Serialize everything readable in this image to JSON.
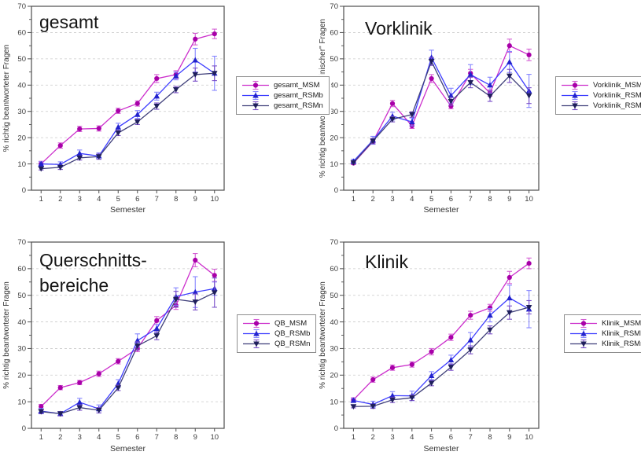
{
  "figure": {
    "background": "#ffffff",
    "axis_color": "#4d4d4d",
    "grid_color": "#c9c9c9",
    "tick_label_color": "#3d3d3d"
  },
  "chart_data": [
    {
      "type": "line",
      "id": "gesamt",
      "title": "gesamt",
      "title_lines": [
        "gesamt"
      ],
      "xlabel": "Semester",
      "ylabel": "% richtig beantworteter Fragen",
      "x": [
        1,
        2,
        3,
        4,
        5,
        6,
        7,
        8,
        9,
        10
      ],
      "ylim": [
        0,
        70
      ],
      "yticks": [
        0,
        10,
        20,
        30,
        40,
        50,
        60,
        70
      ],
      "grid_y": [
        10,
        20,
        30,
        40,
        50,
        60
      ],
      "legend_position": "right-of-plot",
      "series": [
        {
          "name": "gesamt_MSM",
          "marker": "circle",
          "color": "#cc2fcc",
          "marker_color": "#a800a8",
          "error_color": "#d45fd4",
          "values": [
            10,
            17,
            23.3,
            23.5,
            30.2,
            33,
            42.5,
            44,
            57.5,
            59.5
          ],
          "errors": [
            1,
            1,
            1,
            1,
            1,
            1,
            1.5,
            1.5,
            2.2,
            1.8
          ]
        },
        {
          "name": "gesamt_RSMb",
          "marker": "triangle-up",
          "color": "#3d3dff",
          "marker_color": "#2222cc",
          "error_color": "#8585ff",
          "values": [
            10,
            9.8,
            14,
            13,
            24,
            28.8,
            35.8,
            43.5,
            49.5,
            44.5
          ],
          "errors": [
            0.8,
            1,
            1.3,
            1.2,
            1.5,
            1.5,
            1.5,
            1.5,
            4.5,
            6.5
          ]
        },
        {
          "name": "gesamt_RSMn",
          "marker": "triangle-down",
          "color": "#3f3f7a",
          "marker_color": "#1f1f5c",
          "error_color": "#7a4fc9",
          "values": [
            8.2,
            8.7,
            12.3,
            12.8,
            21.8,
            26,
            32,
            38.3,
            44,
            44.5
          ],
          "errors": [
            0.5,
            0.8,
            0.8,
            1,
            1,
            1,
            1.2,
            1.2,
            2.5,
            2.8
          ]
        }
      ]
    },
    {
      "type": "line",
      "id": "vorklinik",
      "title": "Vorklinik",
      "title_lines": [
        "Vorklinik"
      ],
      "xlabel": "Semester",
      "ylabel": "% richtig beantworteter \"vorklinischer\" Fragen",
      "x": [
        1,
        2,
        3,
        4,
        5,
        6,
        7,
        8,
        9,
        10
      ],
      "ylim": [
        0,
        70
      ],
      "yticks": [
        0,
        10,
        20,
        30,
        40,
        50,
        60,
        70
      ],
      "grid_y": [
        10,
        20,
        30,
        40,
        50,
        60
      ],
      "legend_position": "right-of-plot",
      "series": [
        {
          "name": "Vorklinik_MSM",
          "marker": "circle",
          "color": "#cc2fcc",
          "marker_color": "#a800a8",
          "error_color": "#d45fd4",
          "values": [
            10.3,
            18.5,
            33,
            24.5,
            42.5,
            32,
            44.5,
            37,
            55,
            51.5
          ],
          "errors": [
            0.5,
            1,
            1.2,
            1,
            1.5,
            1,
            1.5,
            1.2,
            2.5,
            2.2
          ]
        },
        {
          "name": "Vorklinik_RSMb",
          "marker": "triangle-up",
          "color": "#3d3dff",
          "marker_color": "#2222cc",
          "error_color": "#8585ff",
          "values": [
            11,
            19,
            28.2,
            26,
            50.5,
            36,
            44,
            40,
            48.8,
            37.8
          ],
          "errors": [
            0.8,
            1.5,
            1.5,
            1.5,
            2.8,
            2.8,
            3.8,
            3,
            4,
            6.3
          ]
        },
        {
          "name": "Vorklinik_RSMn",
          "marker": "triangle-down",
          "color": "#3f3f7a",
          "marker_color": "#1f1f5c",
          "error_color": "#7a4fc9",
          "values": [
            10.5,
            18.7,
            27,
            28.8,
            49,
            33.8,
            41,
            35.8,
            43.5,
            36
          ],
          "errors": [
            0.5,
            1,
            1,
            1,
            1.5,
            1.5,
            2,
            2,
            2.5,
            3
          ]
        }
      ]
    },
    {
      "type": "line",
      "id": "querschnittsbereiche",
      "title": "Querschnitts-bereiche",
      "title_lines": [
        "Querschnitts-",
        "bereiche"
      ],
      "xlabel": "Semester",
      "ylabel": "% richtig beantworteter Fragen",
      "x": [
        1,
        2,
        3,
        4,
        5,
        6,
        7,
        8,
        9,
        10
      ],
      "ylim": [
        0,
        70
      ],
      "yticks": [
        0,
        10,
        20,
        30,
        40,
        50,
        60,
        70
      ],
      "grid_y": [
        10,
        20,
        30,
        40,
        50,
        60
      ],
      "legend_position": "right-of-plot",
      "series": [
        {
          "name": "QB_MSM",
          "marker": "circle",
          "color": "#cc2fcc",
          "marker_color": "#a800a8",
          "error_color": "#d45fd4",
          "values": [
            8.2,
            15.3,
            17.2,
            20.5,
            25.2,
            30,
            40.5,
            46.2,
            63.2,
            57.5
          ],
          "errors": [
            0.8,
            0.8,
            0.8,
            1,
            1,
            1.2,
            1.5,
            1.5,
            2.5,
            2.3
          ]
        },
        {
          "name": "QB_RSMb",
          "marker": "triangle-up",
          "color": "#3d3dff",
          "marker_color": "#2222cc",
          "error_color": "#8585ff",
          "values": [
            6.5,
            5.5,
            9.8,
            7.3,
            16.8,
            33,
            37.5,
            49.5,
            51.2,
            52.5
          ],
          "errors": [
            1,
            0.8,
            1.5,
            1.5,
            1.5,
            2.5,
            1.5,
            3.3,
            5.8,
            2.5
          ]
        },
        {
          "name": "QB_RSMn",
          "marker": "triangle-down",
          "color": "#3f3f7a",
          "marker_color": "#1f1f5c",
          "error_color": "#7a4fc9",
          "values": [
            6.3,
            5.5,
            7.8,
            6.8,
            15.2,
            31,
            34.8,
            48.5,
            47.5,
            51
          ],
          "errors": [
            0.8,
            0.8,
            1,
            1,
            1,
            1.5,
            1.5,
            3,
            3,
            5.5
          ]
        }
      ]
    },
    {
      "type": "line",
      "id": "klinik",
      "title": "Klinik",
      "title_lines": [
        "Klinik"
      ],
      "xlabel": "Semester",
      "ylabel": "% richtig beantworteter Fragen",
      "x": [
        1,
        2,
        3,
        4,
        5,
        6,
        7,
        8,
        9,
        10
      ],
      "ylim": [
        0,
        70
      ],
      "yticks": [
        0,
        10,
        20,
        30,
        40,
        50,
        60,
        70
      ],
      "grid_y": [
        10,
        20,
        30,
        40,
        50,
        60
      ],
      "legend_position": "right-of-plot",
      "series": [
        {
          "name": "Klinik_MSM",
          "marker": "circle",
          "color": "#cc2fcc",
          "marker_color": "#a800a8",
          "error_color": "#d45fd4",
          "values": [
            10.7,
            18.3,
            22.8,
            24,
            28.8,
            34.2,
            42.5,
            45.3,
            56.7,
            62
          ],
          "errors": [
            0.8,
            1,
            1,
            1,
            1.2,
            1.2,
            1.5,
            1.3,
            2.3,
            2
          ]
        },
        {
          "name": "Klinik_RSMb",
          "marker": "triangle-up",
          "color": "#3d3dff",
          "marker_color": "#2222cc",
          "error_color": "#8585ff",
          "values": [
            10.5,
            9,
            12.3,
            12.2,
            19.8,
            25.7,
            33.2,
            42.5,
            49,
            44.8
          ],
          "errors": [
            0.8,
            1.2,
            1.5,
            1.8,
            1.5,
            1.8,
            2.8,
            2.5,
            4.8,
            7
          ]
        },
        {
          "name": "Klinik_RSMn",
          "marker": "triangle-down",
          "color": "#3f3f7a",
          "marker_color": "#1f1f5c",
          "error_color": "#7a4fc9",
          "values": [
            8.2,
            8.3,
            10.7,
            11.5,
            17,
            23,
            29.5,
            37,
            43.5,
            45.5
          ],
          "errors": [
            0.5,
            0.8,
            1,
            1,
            1,
            1.2,
            1.5,
            1.5,
            2.5,
            2.5
          ]
        }
      ]
    }
  ]
}
